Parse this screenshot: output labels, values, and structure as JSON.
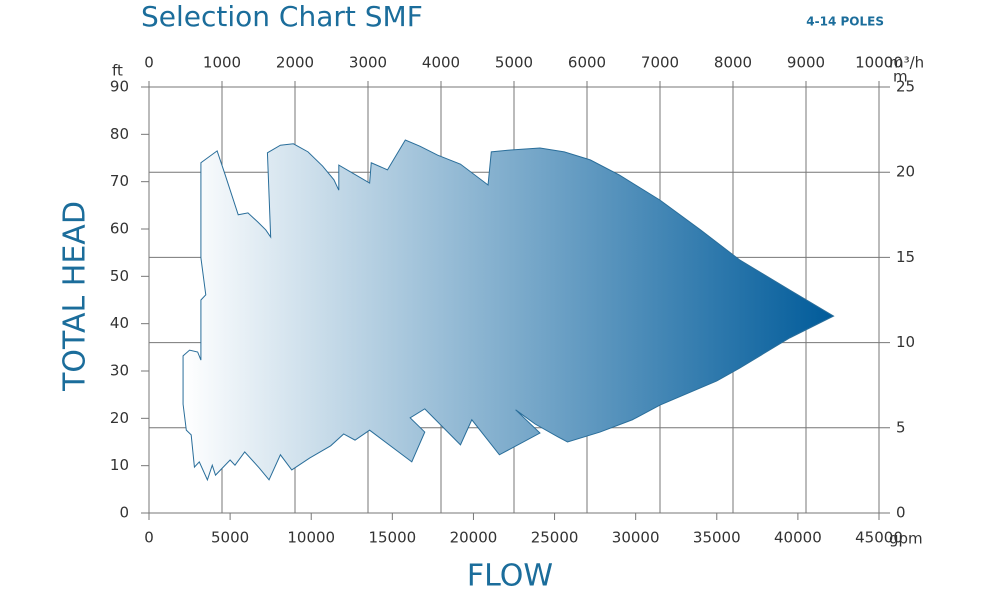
{
  "chart_data": {
    "type": "area",
    "title": "Selection Chart SMF",
    "subtitle": "4-14 POLES",
    "xlabel": "FLOW",
    "ylabel": "TOTAL HEAD",
    "x_unit": "gpm",
    "x2_unit": "m³/h",
    "y_unit": "ft",
    "y2_unit": "m",
    "xlim": [
      0,
      45000
    ],
    "xticks": [
      0,
      5000,
      10000,
      15000,
      20000,
      25000,
      30000,
      35000,
      40000,
      45000
    ],
    "x2lim": [
      0,
      10000
    ],
    "x2ticks": [
      0,
      1000,
      2000,
      3000,
      4000,
      5000,
      6000,
      7000,
      8000,
      9000,
      10000
    ],
    "ylim": [
      0,
      90
    ],
    "yticks": [
      0,
      10,
      20,
      30,
      40,
      50,
      60,
      70,
      80,
      90
    ],
    "y2lim": [
      0,
      25
    ],
    "y2ticks": [
      0,
      5,
      10,
      15,
      20,
      25
    ],
    "grid": true,
    "color": "#005b9a",
    "edge_color": "#2a6e9a",
    "fill_gradient": [
      "#ffffff",
      "#005b9a"
    ],
    "x": [
      2100,
      2100,
      2500,
      3000,
      3200,
      3200,
      3500,
      3200,
      3200,
      4200,
      4700,
      5500,
      6100,
      6700,
      7200,
      7500,
      7300,
      8100,
      8900,
      9800,
      10700,
      11400,
      11700,
      11700,
      12400,
      13600,
      13700,
      14700,
      15800,
      16700,
      17800,
      19200,
      20900,
      21100,
      22300,
      24100,
      25600,
      27200,
      29000,
      31500,
      34000,
      36400,
      39500,
      42200,
      39500,
      36400,
      35000,
      31500,
      29800,
      27800,
      25800,
      25200,
      23800,
      22600,
      24100,
      21600,
      19900,
      19200,
      17000,
      16100,
      17000,
      16200,
      13600,
      12700,
      12000,
      11200,
      9900,
      8800,
      8100,
      7400,
      6800,
      5900,
      5300,
      5000,
      4100,
      3900,
      3600,
      3100,
      2800,
      2600,
      2300
    ],
    "y": [
      23.0,
      33.2,
      34.4,
      34.0,
      32.3,
      45.0,
      46.1,
      53.9,
      74.0,
      76.5,
      71.4,
      63.0,
      63.4,
      61.5,
      59.8,
      58.3,
      76.1,
      77.7,
      78.0,
      76.3,
      73.3,
      70.4,
      68.2,
      73.5,
      72.1,
      69.7,
      74.0,
      72.5,
      78.8,
      77.5,
      75.6,
      73.7,
      69.3,
      76.3,
      76.7,
      77.1,
      76.3,
      74.6,
      71.4,
      66.1,
      59.8,
      53.5,
      47.1,
      41.6,
      37.0,
      30.6,
      27.9,
      22.8,
      19.7,
      17.1,
      15.0,
      16.1,
      18.8,
      21.8,
      16.9,
      12.3,
      19.7,
      14.4,
      22.0,
      20.1,
      17.1,
      10.8,
      17.5,
      15.4,
      16.7,
      14.2,
      11.6,
      9.1,
      12.3,
      7.0,
      9.5,
      12.9,
      10.1,
      11.2,
      8.0,
      10.1,
      7.0,
      10.8,
      9.7,
      16.5,
      17.5
    ]
  }
}
